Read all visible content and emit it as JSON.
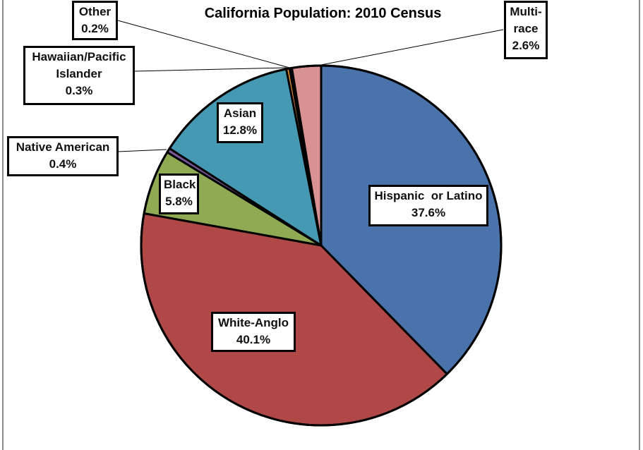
{
  "chart_data": {
    "type": "pie",
    "title": "California Population: 2010 Census",
    "start_angle_deg": 0,
    "direction": "clockwise",
    "slices": [
      {
        "name": "Hispanic or Latino",
        "value": 37.6,
        "label": "37.6%",
        "color": "#4a72ab"
      },
      {
        "name": "White-Anglo",
        "value": 40.1,
        "label": "40.1%",
        "color": "#b04848"
      },
      {
        "name": "Black",
        "value": 5.8,
        "label": "5.8%",
        "color": "#8faa52"
      },
      {
        "name": "Native American",
        "value": 0.4,
        "label": "0.4%",
        "color": "#7a5a98"
      },
      {
        "name": "Asian",
        "value": 12.8,
        "label": "12.8%",
        "color": "#4699b3"
      },
      {
        "name": "Hawaiian/Pacific Islander",
        "value": 0.3,
        "label": "0.3%",
        "color": "#e8913c"
      },
      {
        "name": "Other",
        "value": 0.2,
        "label": "0.2%",
        "color": "#2d4a7a"
      },
      {
        "name": "Multi-race",
        "value": 2.6,
        "label": "2.6%",
        "color": "#d99294"
      }
    ],
    "legend": "none (data labels with leader lines)"
  },
  "labels": {
    "hispanic": {
      "l1": "Hispanic  or Latino",
      "l2": "37.6%"
    },
    "white": {
      "l1": "White-Anglo",
      "l2": "40.1%"
    },
    "black": {
      "l1": "Black",
      "l2": "5.8%"
    },
    "native": {
      "l1": "Native American",
      "l2": "0.4%"
    },
    "asian": {
      "l1": "Asian",
      "l2": "12.8%"
    },
    "hawaiian": {
      "l1": "Hawaiian/Pacific",
      "l2": "Islander",
      "l3": "0.3%"
    },
    "other": {
      "l1": "Other",
      "l2": "0.2%"
    },
    "multi": {
      "l1": "Multi-",
      "l2": "race",
      "l3": "2.6%"
    }
  }
}
